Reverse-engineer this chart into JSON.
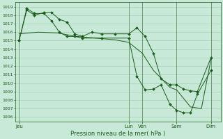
{
  "title": "Pression niveau de la mer( hPa )",
  "bg_color": "#c8e8d8",
  "grid_color": "#99ccaa",
  "line_color": "#1a5c1a",
  "marker_color": "#1a5c1a",
  "ylim": [
    1005.5,
    1019.5
  ],
  "yticks": [
    1006,
    1007,
    1008,
    1009,
    1010,
    1011,
    1012,
    1013,
    1014,
    1015,
    1016,
    1017,
    1018,
    1019
  ],
  "xtick_labels": [
    "Jeu",
    "Lun",
    "Ven",
    "Sam",
    "Dim"
  ],
  "xtick_positions": [
    0.0,
    0.571,
    0.643,
    0.821,
    1.0
  ],
  "xlim": [
    -0.02,
    1.05
  ],
  "lines": [
    {
      "x": [
        0.0,
        0.04,
        0.08,
        0.13,
        0.17,
        0.21,
        0.25,
        0.29,
        0.33,
        0.38,
        0.43,
        0.5,
        0.571,
        0.614,
        0.657,
        0.7,
        0.74,
        0.786,
        0.821,
        0.857,
        0.893,
        0.929,
        1.0
      ],
      "y": [
        1015.0,
        1018.6,
        1018.0,
        1018.3,
        1018.3,
        1017.5,
        1017.2,
        1015.8,
        1015.5,
        1016.0,
        1015.8,
        1015.8,
        1015.8,
        1016.5,
        1015.5,
        1013.5,
        1010.5,
        1009.8,
        1009.8,
        1009.3,
        1009.1,
        1009.0,
        1013.0
      ],
      "marker": true
    },
    {
      "x": [
        0.0,
        0.04,
        0.08,
        0.13,
        0.17,
        0.21,
        0.25,
        0.29,
        0.33,
        0.43,
        0.571,
        0.614,
        0.657,
        0.7,
        0.74,
        0.786,
        0.821,
        0.857,
        0.893,
        0.929,
        1.0
      ],
      "y": [
        1015.0,
        1018.8,
        1018.2,
        1018.2,
        1017.3,
        1016.0,
        1015.5,
        1015.5,
        1015.3,
        1015.3,
        1015.3,
        1010.8,
        1009.2,
        1009.3,
        1009.8,
        1007.5,
        1006.8,
        1006.5,
        1006.5,
        1008.7,
        1011.5
      ],
      "marker": true
    },
    {
      "x": [
        0.0,
        0.1,
        0.2,
        0.3,
        0.4,
        0.5,
        0.571,
        0.643,
        0.7,
        0.786,
        0.821,
        0.893,
        0.95,
        1.0
      ],
      "y": [
        1015.8,
        1016.0,
        1015.9,
        1015.5,
        1015.3,
        1015.1,
        1014.8,
        1013.5,
        1011.5,
        1009.5,
        1009.2,
        1007.2,
        1007.0,
        1012.8
      ],
      "marker": false
    }
  ]
}
